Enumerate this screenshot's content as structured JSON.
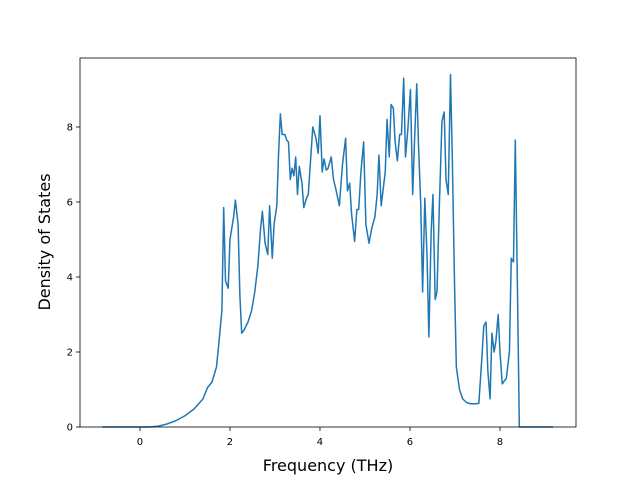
{
  "chart_data": {
    "type": "line",
    "x_label": "Frequency (THz)",
    "y_label": "Density of States",
    "x": [
      -0.84,
      0.2,
      0.4,
      0.6,
      0.8,
      1.0,
      1.2,
      1.4,
      1.5,
      1.6,
      1.7,
      1.75,
      1.82,
      1.86,
      1.9,
      1.96,
      2.0,
      2.08,
      2.12,
      2.18,
      2.22,
      2.26,
      2.32,
      2.4,
      2.48,
      2.55,
      2.62,
      2.68,
      2.72,
      2.78,
      2.84,
      2.88,
      2.94,
      2.98,
      3.04,
      3.08,
      3.12,
      3.16,
      3.22,
      3.26,
      3.3,
      3.34,
      3.38,
      3.42,
      3.46,
      3.5,
      3.54,
      3.6,
      3.64,
      3.7,
      3.74,
      3.84,
      3.91,
      3.96,
      4.0,
      4.05,
      4.09,
      4.14,
      4.18,
      4.25,
      4.3,
      4.36,
      4.43,
      4.5,
      4.57,
      4.61,
      4.66,
      4.7,
      4.77,
      4.82,
      4.86,
      4.91,
      4.97,
      5.02,
      5.09,
      5.15,
      5.22,
      5.27,
      5.31,
      5.36,
      5.4,
      5.45,
      5.49,
      5.54,
      5.58,
      5.63,
      5.67,
      5.72,
      5.77,
      5.81,
      5.86,
      5.9,
      5.95,
      6.01,
      6.06,
      6.1,
      6.15,
      6.19,
      6.24,
      6.28,
      6.33,
      6.38,
      6.42,
      6.47,
      6.51,
      6.56,
      6.6,
      6.65,
      6.71,
      6.76,
      6.8,
      6.85,
      6.9,
      6.94,
      6.99,
      7.03,
      7.1,
      7.17,
      7.26,
      7.35,
      7.46,
      7.53,
      7.6,
      7.64,
      7.69,
      7.73,
      7.78,
      7.82,
      7.87,
      7.91,
      7.96,
      8.0,
      8.05,
      8.14,
      8.21,
      8.25,
      8.3,
      8.34,
      8.39,
      8.43,
      9.18
    ],
    "series": [
      {
        "color": "#1f77b4",
        "values": [
          0,
          0,
          0.02,
          0.08,
          0.17,
          0.3,
          0.48,
          0.75,
          1.05,
          1.2,
          1.6,
          2.2,
          3.1,
          5.85,
          3.9,
          3.7,
          5.0,
          5.6,
          6.05,
          5.4,
          3.5,
          2.5,
          2.6,
          2.8,
          3.1,
          3.6,
          4.3,
          5.3,
          5.75,
          4.9,
          4.6,
          5.9,
          4.5,
          5.4,
          5.9,
          7.3,
          8.35,
          7.8,
          7.8,
          7.65,
          7.6,
          6.6,
          6.9,
          6.7,
          7.2,
          6.2,
          6.95,
          6.5,
          5.85,
          6.1,
          6.2,
          8.0,
          7.7,
          7.3,
          8.3,
          6.8,
          7.15,
          6.85,
          6.9,
          7.2,
          6.6,
          6.3,
          5.9,
          7.0,
          7.7,
          6.3,
          6.5,
          5.7,
          4.95,
          5.8,
          5.8,
          6.8,
          7.6,
          5.4,
          4.9,
          5.3,
          5.6,
          6.2,
          7.25,
          5.9,
          6.3,
          6.8,
          8.2,
          7.2,
          8.6,
          8.5,
          7.6,
          7.1,
          7.8,
          7.8,
          9.3,
          7.2,
          7.9,
          9.0,
          6.2,
          7.6,
          9.15,
          7.5,
          5.9,
          3.6,
          6.1,
          4.5,
          2.4,
          5.2,
          6.2,
          3.4,
          3.6,
          5.8,
          8.15,
          8.4,
          6.6,
          6.2,
          9.4,
          7.2,
          3.8,
          1.6,
          1.0,
          0.75,
          0.65,
          0.62,
          0.62,
          0.63,
          1.9,
          2.7,
          2.8,
          1.5,
          0.75,
          2.5,
          2.0,
          2.3,
          3.0,
          2.0,
          1.15,
          1.3,
          2.0,
          4.5,
          4.4,
          7.65,
          3.5,
          0,
          0
        ]
      }
    ],
    "xlim": [
      -1.333,
      9.689
    ],
    "ylim": [
      0,
      9.84
    ],
    "xticks": [
      0,
      2,
      4,
      6,
      8
    ],
    "yticks": [
      0,
      2,
      4,
      6,
      8
    ],
    "grid": false
  }
}
